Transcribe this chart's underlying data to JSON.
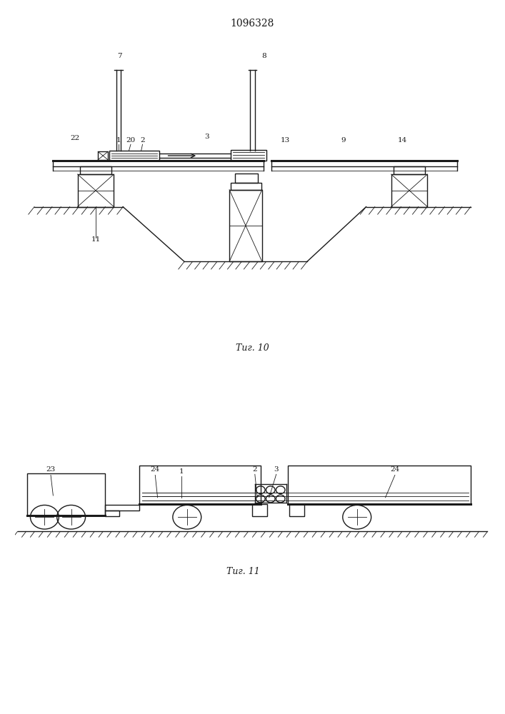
{
  "title": "1096328",
  "fig1_caption": "Τиг. 10",
  "fig2_caption": "Τиг. 11",
  "bg_color": "#ffffff",
  "line_color": "#1a1a1a",
  "lw": 1.0,
  "tlw": 0.6,
  "thk": 2.2
}
